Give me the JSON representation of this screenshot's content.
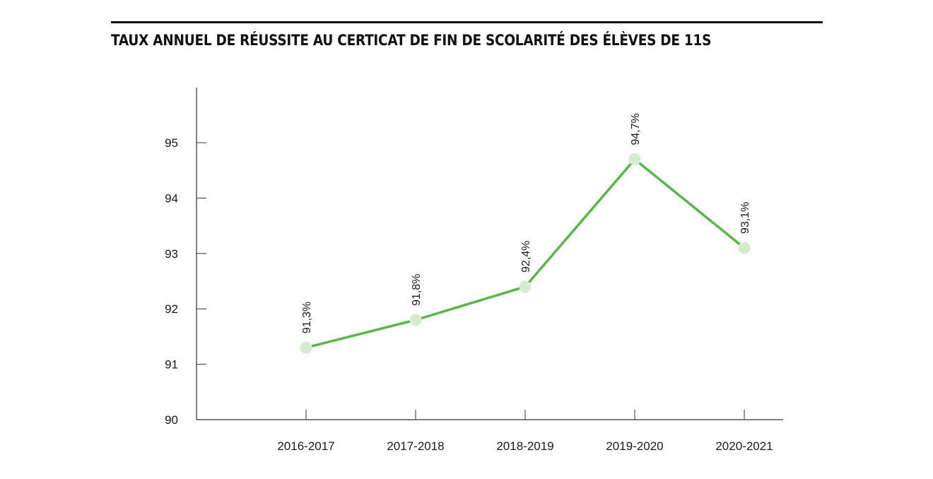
{
  "chart_data": {
    "type": "line",
    "title": "TAUX ANNUEL DE RÉUSSITE AU CERTICAT DE FIN DE SCOLARITÉ DES ÉLÈVES DE 11S",
    "xlabel": "",
    "ylabel": "",
    "categories": [
      "2016-2017",
      "2017-2018",
      "2018-2019",
      "2019-2020",
      "2020-2021"
    ],
    "values": [
      91.3,
      91.8,
      92.4,
      94.7,
      93.1
    ],
    "data_labels": [
      "91,3%",
      "91,8%",
      "92,4%",
      "94,7%",
      "93,1%"
    ],
    "yticks": [
      90,
      91,
      92,
      93,
      94,
      95
    ],
    "ylim": [
      90,
      96
    ],
    "grid": false,
    "legend": "none",
    "colors": {
      "line": "#5ab54a",
      "marker": "#d4ebd0",
      "axis": "#333333",
      "title_rule": "#111111"
    }
  }
}
